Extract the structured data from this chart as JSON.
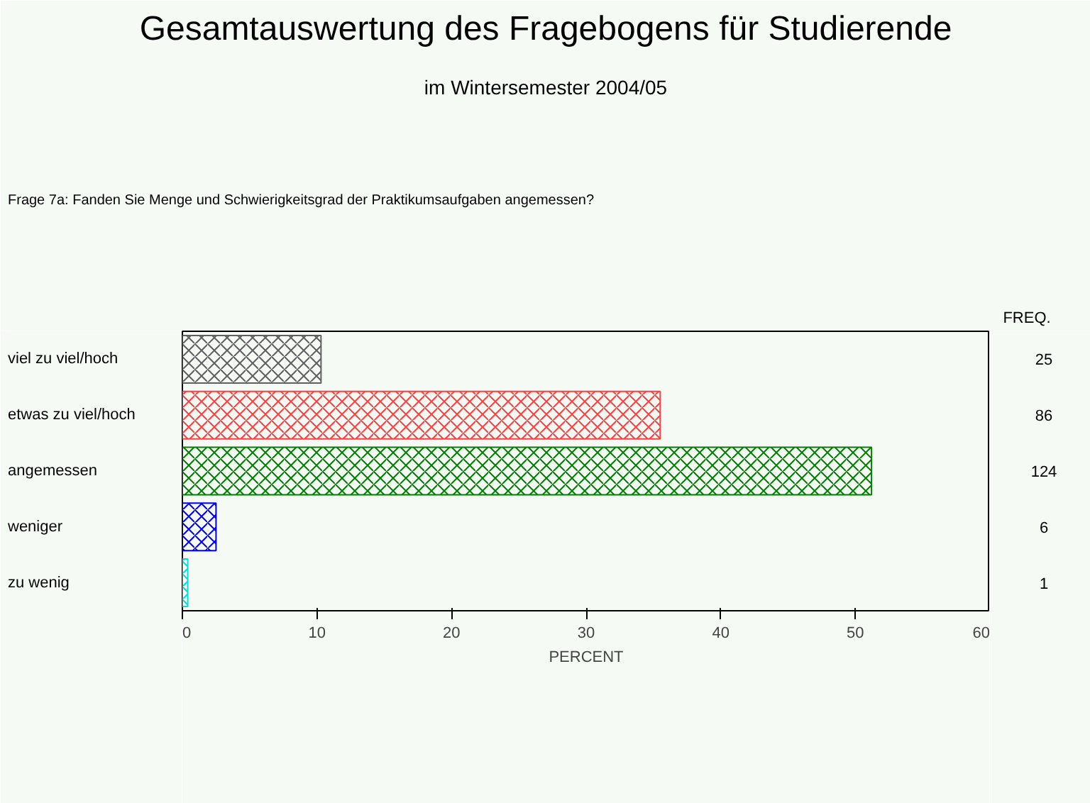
{
  "chart_data": {
    "type": "bar",
    "orientation": "horizontal",
    "title": "Gesamtauswertung des Fragebogens für Studierende",
    "subtitle": "im Wintersemester 2004/05",
    "annotations": [
      "Frage 7a: Fanden Sie Menge und Schwierigkeitsgrad der Praktikumsaufgaben angemessen?",
      "FREQ.",
      "25",
      "86",
      "124",
      "6",
      "1"
    ],
    "categories": [
      "viel zu viel/hoch",
      "etwas zu viel/hoch",
      "angemessen",
      "weniger",
      "zu wenig"
    ],
    "values": [
      10.3,
      35.5,
      51.2,
      2.5,
      0.4
    ],
    "colors": [
      "#606060",
      "#ff4040",
      "#008000",
      "#0000ff",
      "#00e0e0"
    ],
    "xlabel": "PERCENT",
    "xlim": [
      0,
      60
    ],
    "xticks": [
      0,
      10,
      20,
      30,
      40,
      50,
      60
    ],
    "grid": false
  }
}
